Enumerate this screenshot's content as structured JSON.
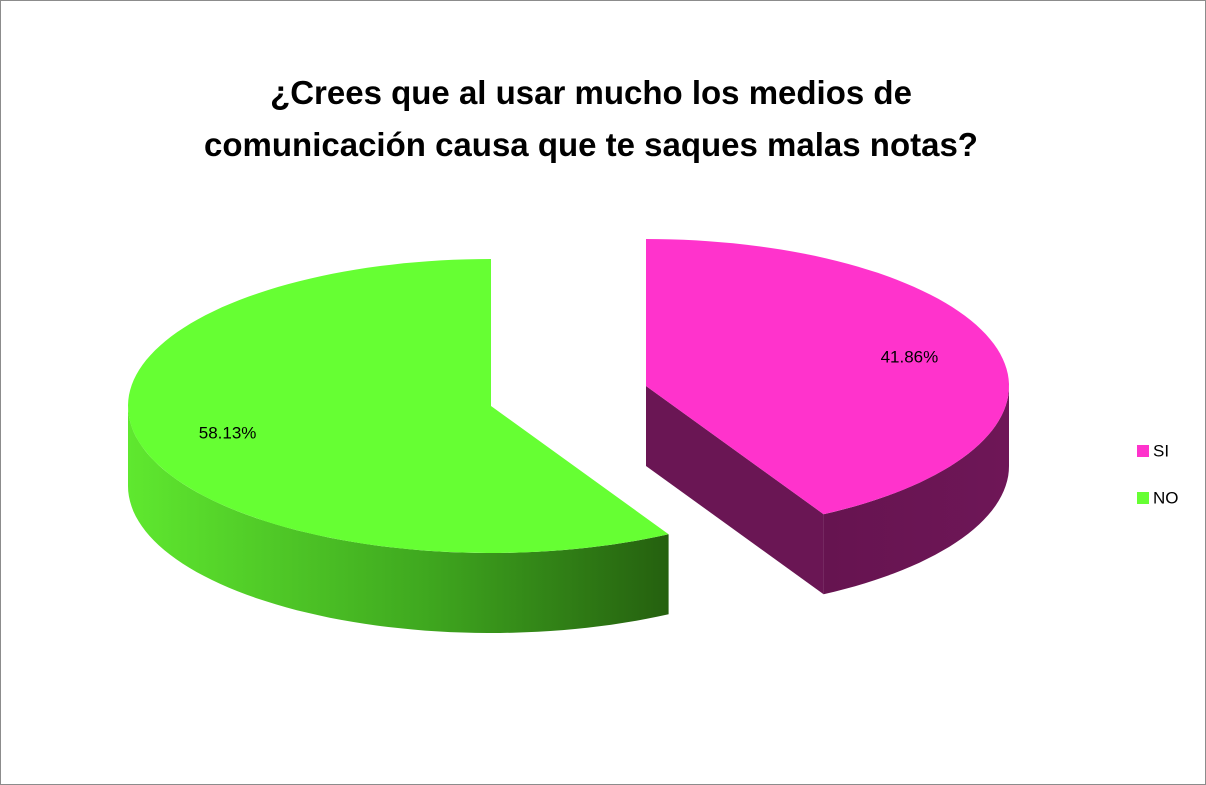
{
  "chart_data": {
    "type": "pie",
    "title": "¿Crees que al usar mucho los medios de comunicación causa que te saques malas notas?",
    "categories": [
      "SI",
      "NO"
    ],
    "values": [
      41.86,
      58.13
    ],
    "value_labels": [
      "41.86%",
      "58.13%"
    ],
    "colors": [
      "#ff33cc",
      "#66ff33"
    ],
    "legend": "right"
  }
}
